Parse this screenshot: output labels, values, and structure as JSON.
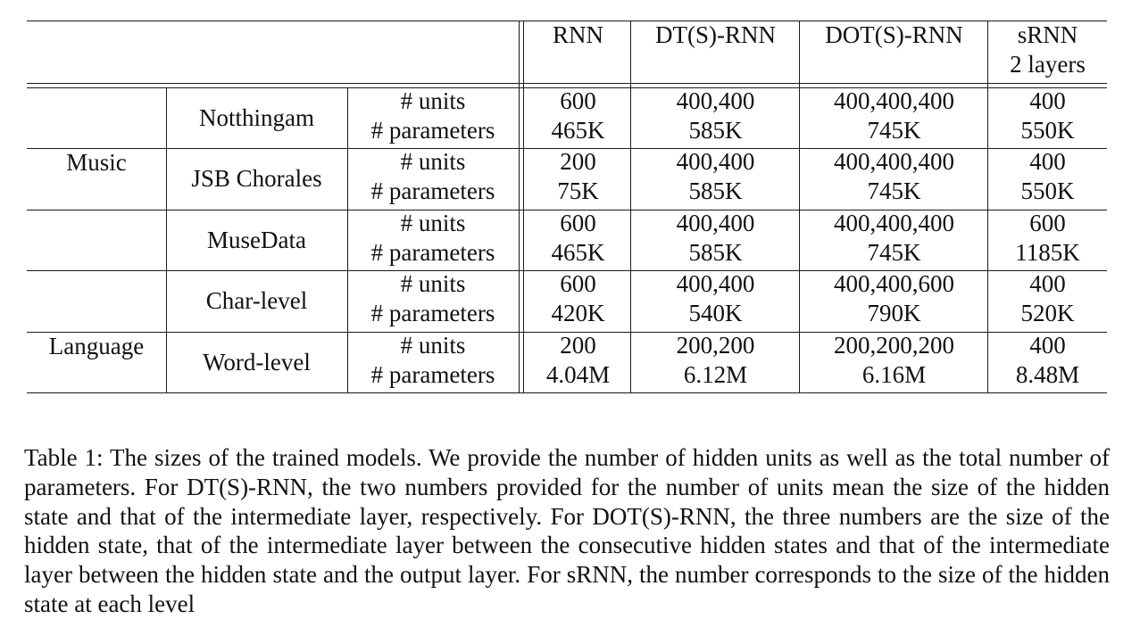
{
  "table": {
    "columns": [
      "RNN",
      "DT(S)-RNN",
      "DOT(S)-RNN",
      "sRNN"
    ],
    "column_sub": "2 layers",
    "domains": [
      "Music",
      "Language"
    ],
    "metric_labels": {
      "units": "# units",
      "params": "# parameters"
    },
    "rows": [
      {
        "dataset": "Notthingam",
        "units": [
          "600",
          "400,400",
          "400,400,400",
          "400"
        ],
        "params": [
          "465K",
          "585K",
          "745K",
          "550K"
        ]
      },
      {
        "dataset": "JSB Chorales",
        "units": [
          "200",
          "400,400",
          "400,400,400",
          "400"
        ],
        "params": [
          "75K",
          "585K",
          "745K",
          "550K"
        ]
      },
      {
        "dataset": "MuseData",
        "units": [
          "600",
          "400,400",
          "400,400,400",
          "600"
        ],
        "params": [
          "465K",
          "585K",
          "745K",
          "1185K"
        ]
      },
      {
        "dataset": "Char-level",
        "units": [
          "600",
          "400,400",
          "400,400,600",
          "400"
        ],
        "params": [
          "420K",
          "540K",
          "790K",
          "520K"
        ]
      },
      {
        "dataset": "Word-level",
        "units": [
          "200",
          "200,200",
          "200,200,200",
          "400"
        ],
        "params": [
          "4.04M",
          "6.12M",
          "6.16M",
          "8.48M"
        ]
      }
    ]
  },
  "caption": "Table 1: The sizes of the trained models. We provide the number of hidden units as well as the total number of parameters. For DT(S)-RNN, the two numbers provided for the number of units mean the size of the hidden state and that of the intermediate layer, respectively. For DOT(S)-RNN, the three numbers are the size of the hidden state, that of the intermediate layer between the consecutive hidden states and that of the intermediate layer between the hidden state and the output layer. For sRNN, the number corresponds to the size of the hidden state at each level"
}
